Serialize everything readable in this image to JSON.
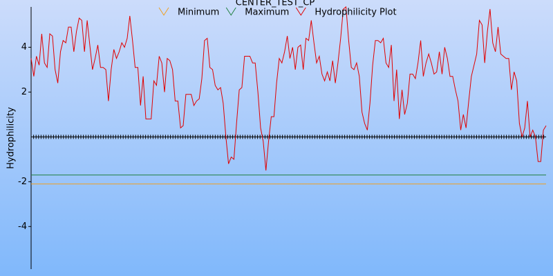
{
  "chart_data": {
    "type": "line",
    "title": "CENTER_TEST_CP",
    "y_label": "Hydrophilicity",
    "ylim": [
      -5.9,
      5.8
    ],
    "yticks": [
      -4,
      -2,
      2,
      4
    ],
    "reference_lines": [
      {
        "name": "Minimum",
        "color": "#f0a020",
        "value": -2.1
      },
      {
        "name": "Maximum",
        "color": "#208040",
        "value": -1.7
      }
    ],
    "series": [
      {
        "name": "Hydrophilicity Plot",
        "color": "#e00000",
        "values": [
          3.5,
          2.7,
          3.6,
          3.2,
          4.6,
          3.3,
          3.1,
          4.6,
          4.5,
          3.0,
          2.4,
          3.8,
          4.3,
          4.2,
          4.9,
          4.9,
          3.8,
          4.7,
          5.3,
          5.2,
          3.8,
          5.2,
          4.1,
          3.0,
          3.5,
          4.1,
          3.1,
          3.1,
          3.0,
          1.6,
          3.0,
          3.9,
          3.5,
          3.8,
          4.2,
          4.0,
          4.4,
          5.4,
          4.3,
          3.1,
          3.1,
          1.4,
          2.7,
          0.8,
          0.8,
          0.8,
          2.5,
          2.3,
          3.6,
          3.3,
          2.0,
          3.5,
          3.4,
          3.0,
          1.6,
          1.6,
          0.4,
          0.5,
          1.9,
          1.9,
          1.9,
          1.4,
          1.6,
          1.7,
          2.6,
          4.3,
          4.4,
          3.1,
          3.0,
          2.3,
          2.1,
          2.2,
          1.5,
          0,
          -1.2,
          -0.9,
          -1.0,
          0.6,
          2.1,
          2.2,
          3.6,
          3.6,
          3.6,
          3.3,
          3.3,
          2.0,
          0.4,
          -0.2,
          -1.5,
          -0.2,
          0.9,
          0.9,
          2.4,
          3.5,
          3.3,
          3.8,
          4.5,
          3.5,
          4.0,
          3.0,
          4.0,
          4.1,
          3.0,
          4.4,
          4.3,
          5.2,
          4.2,
          3.3,
          3.6,
          2.8,
          2.5,
          2.9,
          2.5,
          3.4,
          2.4,
          3.3,
          4.4,
          5.7,
          5.8,
          4.3,
          3.1,
          3.0,
          3.3,
          2.7,
          1.1,
          0.6,
          0.3,
          1.5,
          3.2,
          4.3,
          4.3,
          4.2,
          4.4,
          3.3,
          3.1,
          4.1,
          1.6,
          3.0,
          0.8,
          2.1,
          1.0,
          1.5,
          2.8,
          2.8,
          2.6,
          3.3,
          4.3,
          2.7,
          3.3,
          3.7,
          3.3,
          2.8,
          2.9,
          3.8,
          2.8,
          4.0,
          3.5,
          2.7,
          2.7,
          2.1,
          1.6,
          0.3,
          1.0,
          0.4,
          1.6,
          2.7,
          3.2,
          3.7,
          5.2,
          5.0,
          3.3,
          4.7,
          5.7,
          4.2,
          3.8,
          4.9,
          3.7,
          3.6,
          3.5,
          3.5,
          2.1,
          2.9,
          2.5,
          0.6,
          0.0,
          0.4,
          1.6,
          0.0,
          0.3,
          0,
          -1.1,
          -1.1,
          0.3,
          0.5
        ]
      }
    ]
  }
}
